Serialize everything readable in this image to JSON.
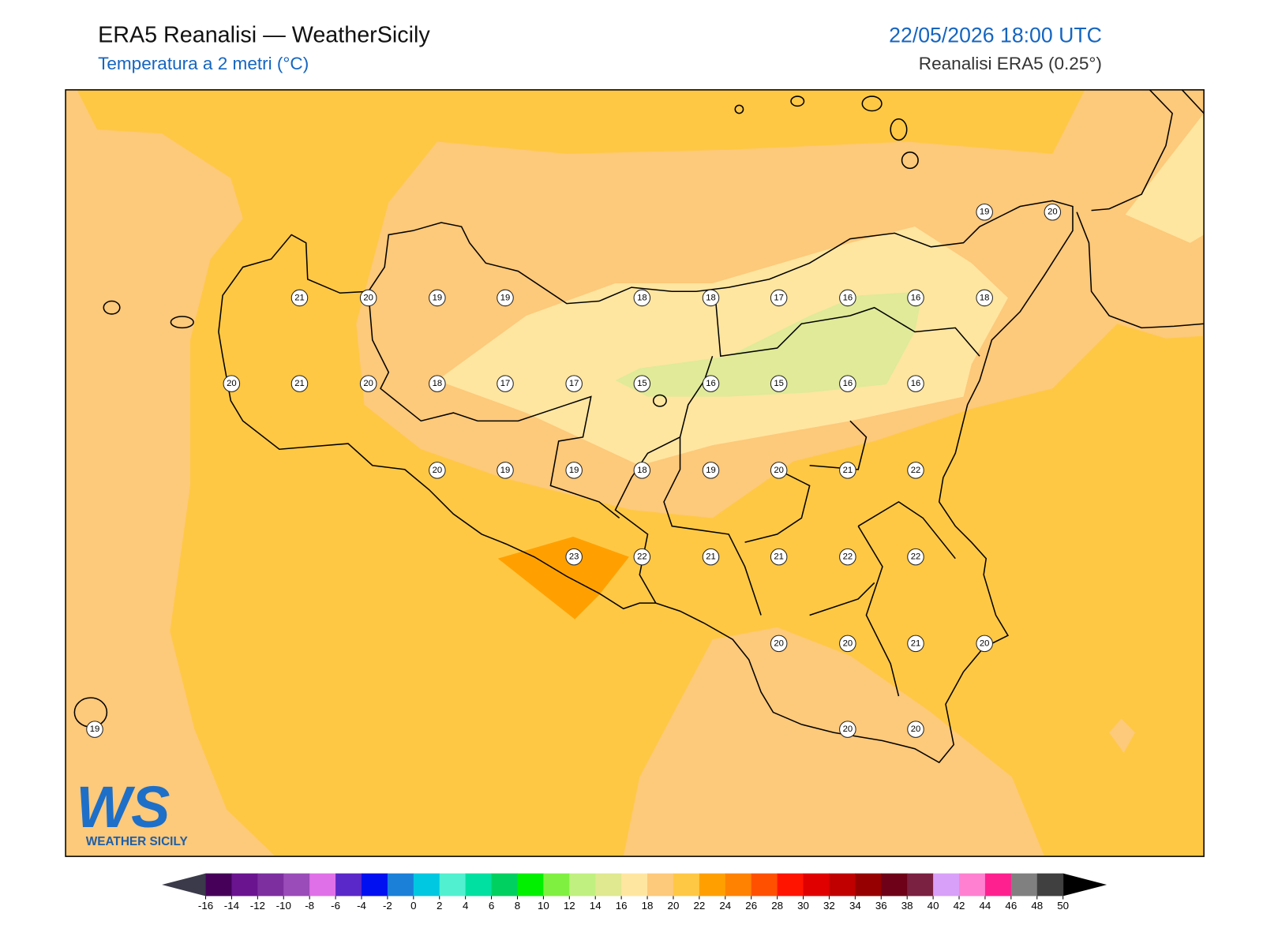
{
  "header": {
    "title": "ERA5 Reanalisi — WeatherSicily",
    "subtitle": "Temperatura a 2 metri (°C)",
    "datetime": "22/05/2026 18:00 UTC",
    "source": "Reanalisi ERA5 (0.25°)"
  },
  "stations": [
    21,
    20,
    19,
    19,
    18,
    18,
    17,
    16,
    16,
    18,
    19,
    20,
    20,
    21,
    20,
    18,
    17,
    17,
    15,
    16,
    15,
    16,
    16,
    20,
    19,
    19,
    18,
    19,
    20,
    21,
    22,
    23,
    22,
    21,
    21,
    22,
    22,
    20,
    20,
    21,
    20,
    19,
    20,
    20
  ],
  "logo": {
    "mark": "WS",
    "name": "WEATHER SICILY"
  },
  "colorbar": {
    "ticks": [
      -16,
      -14,
      -12,
      -10,
      -8,
      -6,
      -4,
      -2,
      0,
      2,
      4,
      6,
      8,
      10,
      12,
      14,
      16,
      18,
      20,
      22,
      24,
      26,
      28,
      30,
      32,
      34,
      36,
      38,
      40,
      42,
      44,
      46,
      48,
      50
    ],
    "colors": [
      "#46005a",
      "#6a1490",
      "#7d2fa0",
      "#9a4cb8",
      "#e070e8",
      "#5a28c8",
      "#0010f0",
      "#1a80d8",
      "#00c8e0",
      "#50f0d0",
      "#00e0a0",
      "#00d060",
      "#00f000",
      "#80f040",
      "#c0f080",
      "#e0e890",
      "#ffe6a0",
      "#fdc97a",
      "#ffc844",
      "#ffa000",
      "#ff8200",
      "#ff5000",
      "#ff1400",
      "#e00000",
      "#c00000",
      "#960000",
      "#6e0018",
      "#7a2040",
      "#d8a0f8",
      "#ff80d0",
      "#ff2090",
      "#808080",
      "#404040"
    ],
    "under": "#3a3a4a",
    "over": "#000000"
  }
}
